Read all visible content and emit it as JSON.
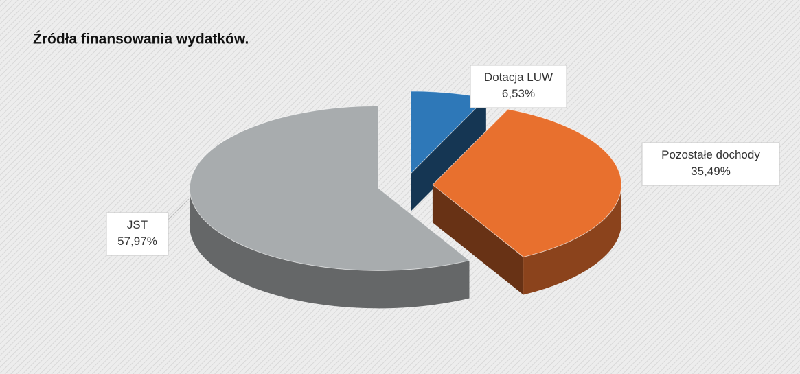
{
  "chart_data": {
    "type": "pie",
    "title": "Źródła finansowania wydatków.",
    "categories": [
      "Dotacja LUW",
      "Pozostałe dochody",
      "JST"
    ],
    "values": [
      6.53,
      35.49,
      57.97
    ],
    "value_labels": [
      "6,53%",
      "35,49%",
      "57,97%"
    ],
    "colors": [
      "#2e78b8",
      "#e8702e",
      "#a8acae"
    ]
  }
}
